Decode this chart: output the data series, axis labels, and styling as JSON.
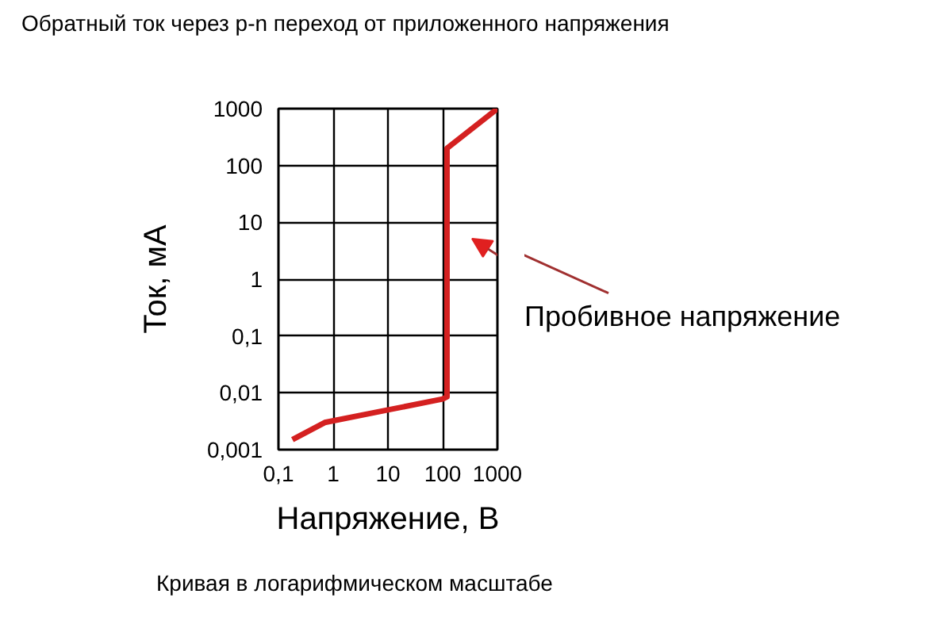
{
  "chart_data": {
    "type": "line",
    "title": "Обратный ток через p-n переход от приложенного напряжения",
    "xlabel": "Напряжение, В",
    "ylabel": "Ток, мА",
    "annotations": [
      "Пробивное напряжение",
      "Кривая в логарифмическом масштабе"
    ],
    "log": "xy",
    "grid": true,
    "marker": "none",
    "line_style": "solid",
    "xlim": [
      0.1,
      1000
    ],
    "ylim": [
      0.001,
      1000
    ],
    "xticks": [
      {
        "value": 0.1,
        "label": "0,1"
      },
      1,
      10,
      100,
      1000
    ],
    "yticks": [
      {
        "value": 0.001,
        "label": "0,001"
      },
      {
        "value": 0.01,
        "label": "0,01"
      },
      {
        "value": 0.1,
        "label": "0,1"
      },
      1,
      10,
      100,
      1000
    ],
    "series": [
      {
        "color": "#d42020",
        "x": [
          0.18,
          0.7,
          10,
          100,
          120,
          120,
          1000
        ],
        "values": [
          0.0015,
          0.003,
          0.005,
          0.0078,
          0.0085,
          200,
          1000
        ]
      }
    ]
  }
}
